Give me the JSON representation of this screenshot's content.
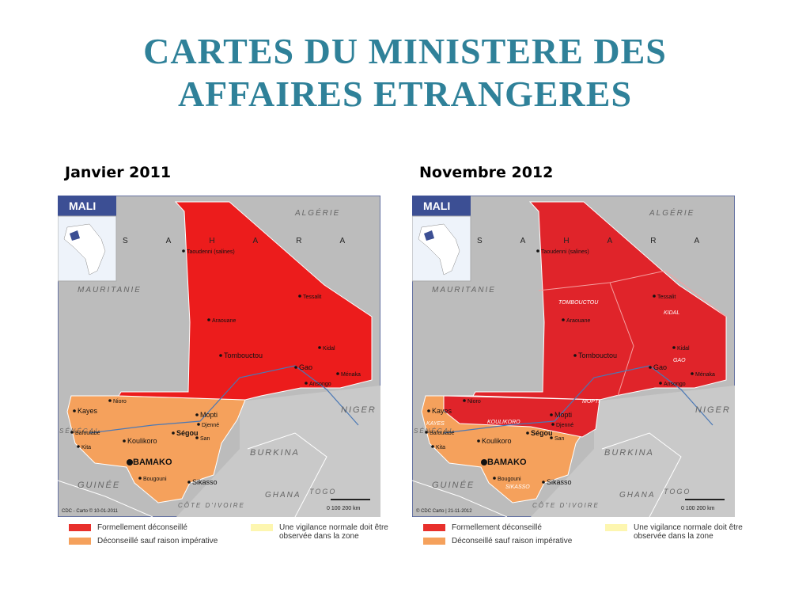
{
  "title": [
    "CARTES DU MINISTERE DES",
    "AFFAIRES ETRANGERES"
  ],
  "maps": [
    {
      "caption": "Janvier 2011",
      "badge": "MALI",
      "sahara": "SAHARA",
      "scale": "0      100      200 km",
      "credit": "CDC - Carto © 10-01-2011",
      "places": [
        "ALGÉRIE",
        "MAURITANIE",
        "NIGER",
        "BURKINA",
        "GUINÉE",
        "SÉNÉGAL",
        "GHANA",
        "TOGO",
        "CÔTE D'IVOIRE",
        "Taoudenni (salines)",
        "Tessalit",
        "Araouane",
        "Kidal",
        "Tombouctou",
        "Gao",
        "Ménaka",
        "Ansongo",
        "Kayes",
        "Nioro",
        "Mopti",
        "Ségou",
        "BAMAKO",
        "Koulikoro",
        "Sikasso",
        "Bougouni",
        "San",
        "Djenné",
        "Kita",
        "Bafoulabé"
      ],
      "regions": [],
      "legend": [
        "Formellement déconseillé",
        "Déconseillé sauf raison impérative",
        "Une vigilance normale doit être observée dans la zone"
      ]
    },
    {
      "caption": "Novembre 2012",
      "badge": "MALI",
      "sahara": "SAHARA",
      "scale": "0      100      200 km",
      "credit": "© CDC Carto | 21-11-2012",
      "places": [
        "ALGÉRIE",
        "MAURITANIE",
        "NIGER",
        "BURKINA",
        "GUINÉE",
        "SÉNÉGAL",
        "GHANA",
        "TOGO",
        "CÔTE D'IVOIRE",
        "Taoudenni (salines)",
        "Tessalit",
        "Araouane",
        "Kidal",
        "Tombouctou",
        "Gao",
        "Ménaka",
        "Ansongo",
        "Kayes",
        "Nioro",
        "Mopti",
        "Ségou",
        "BAMAKO",
        "Koulikoro",
        "Sikasso",
        "Bougouni",
        "San",
        "Djenné",
        "Kita",
        "Bafoulabé"
      ],
      "regions": [
        "TOMBOUCTOU",
        "KIDAL",
        "GAO",
        "MOPTI",
        "KOULIKORO",
        "KAYES",
        "SIKASSO"
      ],
      "legend": [
        "Formellement déconseillé",
        "Déconseillé sauf raison impérative",
        "Une vigilance normale doit être observée dans la zone"
      ]
    }
  ]
}
